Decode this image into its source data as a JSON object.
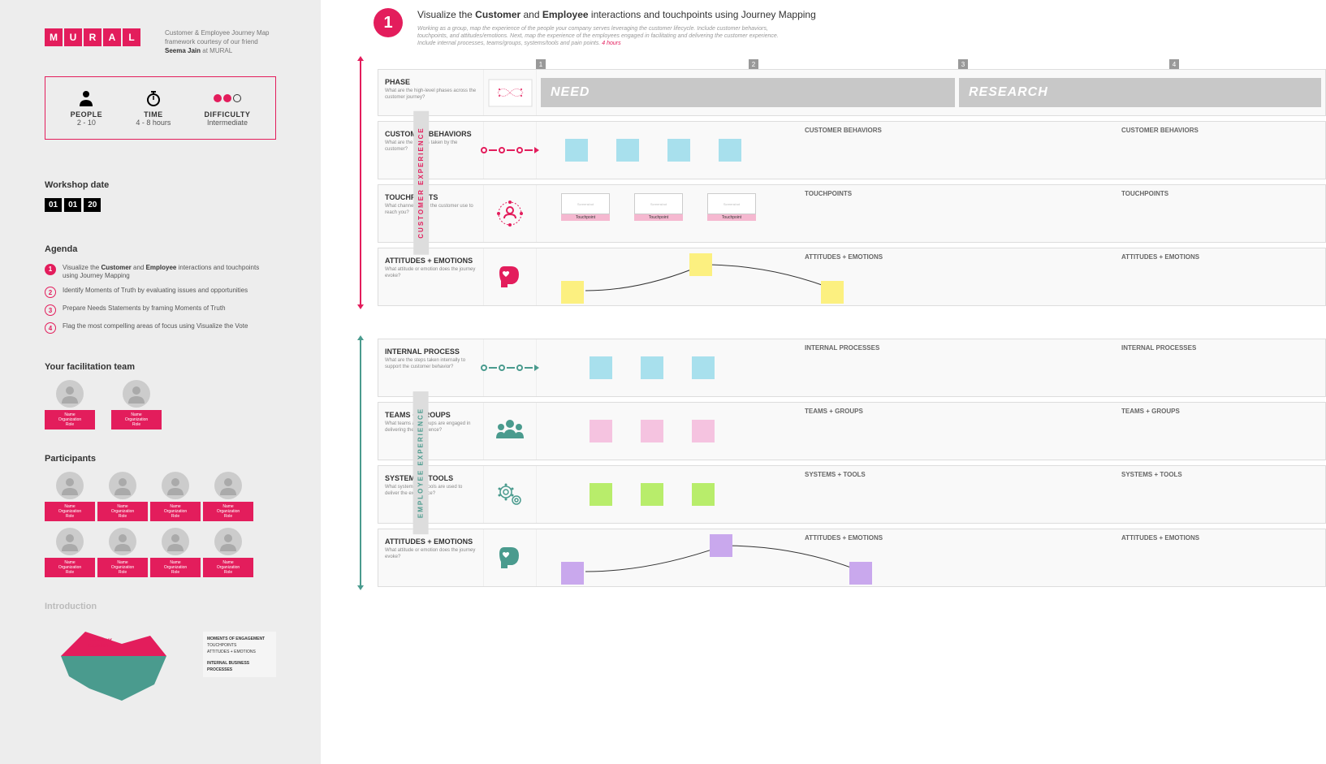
{
  "brand": {
    "letters": [
      "M",
      "U",
      "R",
      "A",
      "L"
    ],
    "color": "#e31d5c"
  },
  "subtitle": {
    "line1": "Customer & Employee Journey Map",
    "line2": "framework courtesy of our friend",
    "author": "Seema Jain",
    "at": " at MURAL"
  },
  "metrics": {
    "people": {
      "label": "PEOPLE",
      "value": "2 - 10"
    },
    "time": {
      "label": "TIME",
      "value": "4 - 8 hours"
    },
    "difficulty": {
      "label": "DIFFICULTY",
      "value": "Intermediate",
      "level": 2,
      "of": 3
    }
  },
  "workshop_date": {
    "label": "Workshop date",
    "parts": [
      "01",
      "01",
      "20"
    ]
  },
  "agenda": {
    "label": "Agenda",
    "items": [
      {
        "n": "1",
        "html": "Visualize the <b>Customer</b> and <b>Employee</b> interactions and touchpoints using Journey Mapping"
      },
      {
        "n": "2",
        "html": "Identify Moments of Truth by evaluating issues and opportunities"
      },
      {
        "n": "3",
        "html": "Prepare Needs Statements by framing Moments of Truth"
      },
      {
        "n": "4",
        "html": "Flag the most compelling areas of focus using Visualize the Vote"
      }
    ]
  },
  "team": {
    "label": "Your facilitation team",
    "members": [
      {
        "name": "Name",
        "org": "Organization",
        "role": "Role"
      },
      {
        "name": "Name",
        "org": "Organization",
        "role": "Role"
      }
    ]
  },
  "participants": {
    "label": "Participants",
    "count": 8,
    "tag": {
      "name": "Name",
      "org": "Organization",
      "role": "Role"
    }
  },
  "intro": {
    "label": "Introduction",
    "iceberg_top": "Customer Experience",
    "labels": [
      "MOMENTS OF ENGAGEMENT",
      "TOUCHPOINTS",
      "ATTITUDES + EMOTIONS",
      "",
      "INTERNAL BUSINESS PROCESSES"
    ]
  },
  "step": {
    "n": "1",
    "title_pre": "Visualize the ",
    "title_b1": "Customer",
    "title_mid": " and ",
    "title_b2": "Employee",
    "title_post": " interactions and touchpoints using Journey Mapping",
    "desc": "Working as a group, map the experience of the people your company serves leveraging the customer lifecycle. Include customer behaviors, touchpoints, and attitudes/emotions. Next, map the experience of the employees engaged in facilitating and delivering the customer experience. Include internal processes, teams/groups, systems/tools and pain points.",
    "hours": "4 hours"
  },
  "phases": {
    "numbers": [
      "1",
      "2",
      "3",
      "4"
    ],
    "need": "NEED",
    "research": "RESEARCH"
  },
  "rows": {
    "phase": {
      "title": "PHASE",
      "desc": "What are the high-level phases across the customer journey?"
    },
    "cb": {
      "title": "CUSTOMER BEHAVIORS",
      "desc": "What are the actions taken by the customer?",
      "col": "CUSTOMER BEHAVIORS"
    },
    "tp": {
      "title": "TOUCHPOINTS",
      "desc": "What channels does the customer use to reach you?",
      "col": "TOUCHPOINTS",
      "card_frame": "Screenshot",
      "card_cap": "Touchpoint"
    },
    "ae": {
      "title": "ATTITUDES + EMOTIONS",
      "desc": "What attitude or emotion does the journey evoke?",
      "col": "ATTITUDES + EMOTIONS"
    },
    "ip": {
      "title": "INTERNAL PROCESS",
      "desc": "What are the steps taken internally to support the customer behavior?",
      "col": "INTERNAL PROCESSES"
    },
    "tg": {
      "title": "TEAMS + GROUPS",
      "desc": "What teams and groups are engaged in delivering the experience?",
      "col": "TEAMS + GROUPS"
    },
    "st": {
      "title": "SYSTEMS + TOOLS",
      "desc": "What systems and tools are used to deliver the experience?",
      "col": "SYSTEMS + TOOLS"
    }
  },
  "vert": {
    "cust": "CUSTOMER EXPERIENCE",
    "emp": "EMPLOYEE EXPERIENCE"
  },
  "colors": {
    "brand": "#e31d5c",
    "teal": "#4a9b8e",
    "sticky_blue": "#a8e0ed",
    "sticky_yellow": "#fcf080",
    "sticky_pink": "#f5c3e0",
    "sticky_green": "#b8ed6b",
    "sticky_purple": "#c9a8ed",
    "band": "#c8c8c8"
  },
  "curves": {
    "customer": {
      "points": [
        [
          30,
          42
        ],
        [
          175,
          10
        ],
        [
          340,
          42
        ]
      ],
      "sticky_color": "yellow"
    },
    "employee": {
      "points": [
        [
          30,
          42
        ],
        [
          200,
          10
        ],
        [
          370,
          42
        ]
      ],
      "sticky_color": "purple"
    }
  }
}
